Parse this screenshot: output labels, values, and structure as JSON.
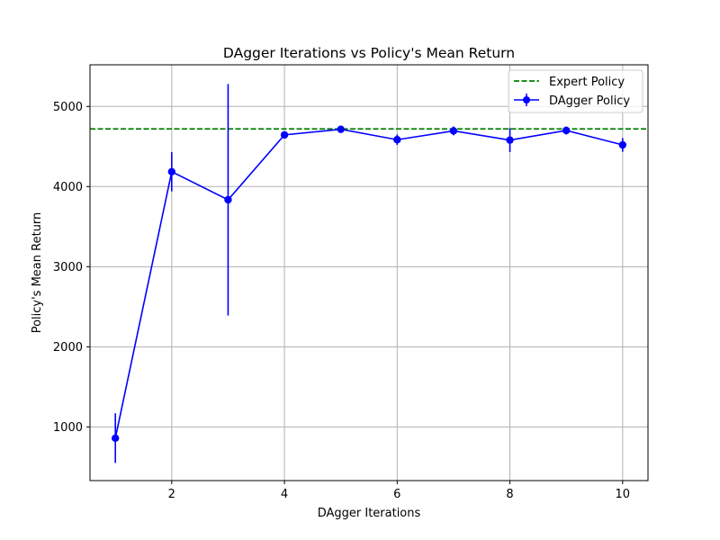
{
  "chart_data": {
    "type": "line",
    "title": "DAgger Iterations vs Policy's Mean Return",
    "xlabel": "DAgger Iterations",
    "ylabel": "Policy's Mean Return",
    "xlim": [
      0.55,
      10.45
    ],
    "ylim": [
      330,
      5520
    ],
    "xticks": [
      2,
      4,
      6,
      8,
      10
    ],
    "yticks": [
      1000,
      2000,
      3000,
      4000,
      5000
    ],
    "grid": true,
    "legend_position": "top-right",
    "reference_line": {
      "name": "Expert Policy",
      "y": 4720,
      "color": "#008000",
      "style": "dashed"
    },
    "series": [
      {
        "name": "DAgger Policy",
        "color": "#0000ff",
        "x": [
          1,
          2,
          3,
          4,
          5,
          6,
          7,
          8,
          9,
          10
        ],
        "y": [
          860,
          4185,
          3835,
          4645,
          4715,
          4585,
          4695,
          4580,
          4700,
          4520
        ],
        "yerr": [
          310,
          245,
          1445,
          45,
          45,
          65,
          55,
          150,
          50,
          85
        ]
      }
    ]
  }
}
